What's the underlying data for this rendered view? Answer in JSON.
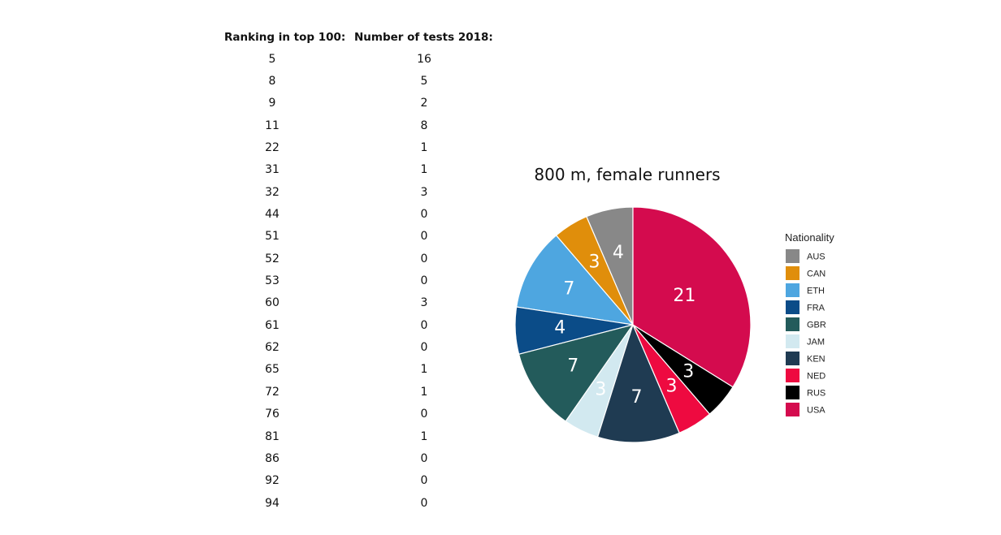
{
  "table": {
    "header_rank": "Ranking in top 100:",
    "header_tests": "Number of tests 2018:",
    "rows": [
      {
        "rank": "5",
        "tests": "16"
      },
      {
        "rank": "8",
        "tests": "5"
      },
      {
        "rank": "9",
        "tests": "2"
      },
      {
        "rank": "11",
        "tests": "8"
      },
      {
        "rank": "22",
        "tests": "1"
      },
      {
        "rank": "31",
        "tests": "1"
      },
      {
        "rank": "32",
        "tests": "3"
      },
      {
        "rank": "44",
        "tests": "0"
      },
      {
        "rank": "51",
        "tests": "0"
      },
      {
        "rank": "52",
        "tests": "0"
      },
      {
        "rank": "53",
        "tests": "0"
      },
      {
        "rank": "60",
        "tests": "3"
      },
      {
        "rank": "61",
        "tests": "0"
      },
      {
        "rank": "62",
        "tests": "0"
      },
      {
        "rank": "65",
        "tests": "1"
      },
      {
        "rank": "72",
        "tests": "1"
      },
      {
        "rank": "76",
        "tests": "0"
      },
      {
        "rank": "81",
        "tests": "1"
      },
      {
        "rank": "86",
        "tests": "0"
      },
      {
        "rank": "92",
        "tests": "0"
      },
      {
        "rank": "94",
        "tests": "0"
      }
    ]
  },
  "chart_data": {
    "type": "pie",
    "title": "800 m, female runners",
    "legend_title": "Nationality",
    "legend_position": "right",
    "categories": [
      "AUS",
      "CAN",
      "ETH",
      "FRA",
      "GBR",
      "JAM",
      "KEN",
      "NED",
      "RUS",
      "USA"
    ],
    "values": [
      4,
      3,
      7,
      4,
      7,
      3,
      7,
      3,
      3,
      21
    ],
    "colors": [
      "#888888",
      "#E08E0B",
      "#4EA6E0",
      "#0B4C88",
      "#235B5B",
      "#D2E9F0",
      "#1F3B52",
      "#EE0A40",
      "#000000",
      "#D40B4E"
    ]
  }
}
